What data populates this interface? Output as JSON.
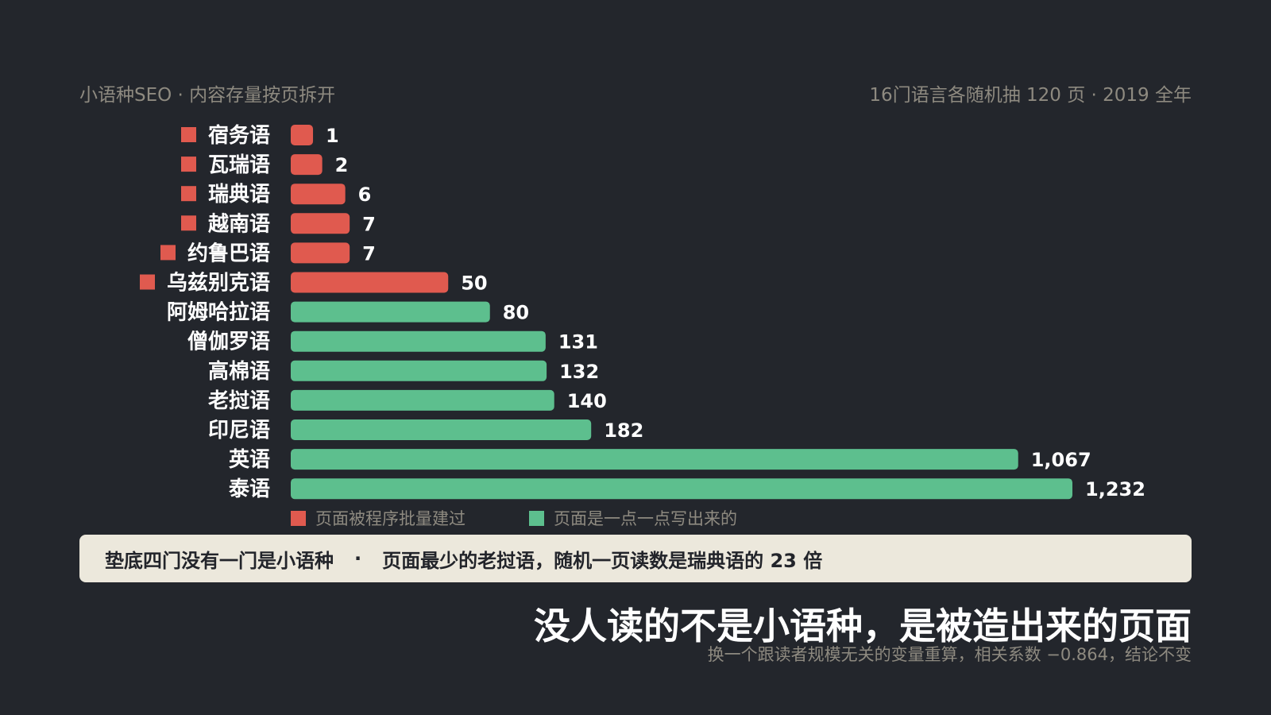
{
  "header": {
    "left": "小语种SEO · 内容存量按页拆开",
    "right": "16门语言各随机抽 120 页 · 2019 全年"
  },
  "chart_data": {
    "type": "bar",
    "orientation": "horizontal",
    "categories": [
      "宿务语",
      "瓦瑞语",
      "瑞典语",
      "越南语",
      "约鲁巴语",
      "乌兹别克语",
      "阿姆哈拉语",
      "僧伽罗语",
      "高棉语",
      "老挝语",
      "印尼语",
      "英语",
      "泰语"
    ],
    "values": [
      1,
      2,
      6,
      7,
      7,
      50,
      80,
      131,
      132,
      140,
      182,
      1067,
      1232
    ],
    "value_labels": [
      "1",
      "2",
      "6",
      "7",
      "7",
      "50",
      "80",
      "131",
      "132",
      "140",
      "182",
      "1,067",
      "1,232"
    ],
    "groups": [
      "program",
      "program",
      "program",
      "program",
      "program",
      "program",
      "manual",
      "manual",
      "manual",
      "manual",
      "manual",
      "manual",
      "manual"
    ],
    "legend": [
      {
        "key": "program",
        "label": "页面被程序批量建过",
        "color": "#e05a4f"
      },
      {
        "key": "manual",
        "label": "页面是一点一点写出来的",
        "color": "#5dbf8e"
      }
    ],
    "scale": "sqrt",
    "legend_position": "bottom-left",
    "grid": false
  },
  "callout": {
    "part1": "垫底四门没有一门是小语种",
    "separator": "·",
    "part2": "页面最少的老挝语，随机一页读数是瑞典语的 23 倍"
  },
  "headline": "没人读的不是小语种，是被造出来的页面",
  "subline": "换一个跟读者规模无关的变量重算，相关系数 −0.864，结论不变"
}
